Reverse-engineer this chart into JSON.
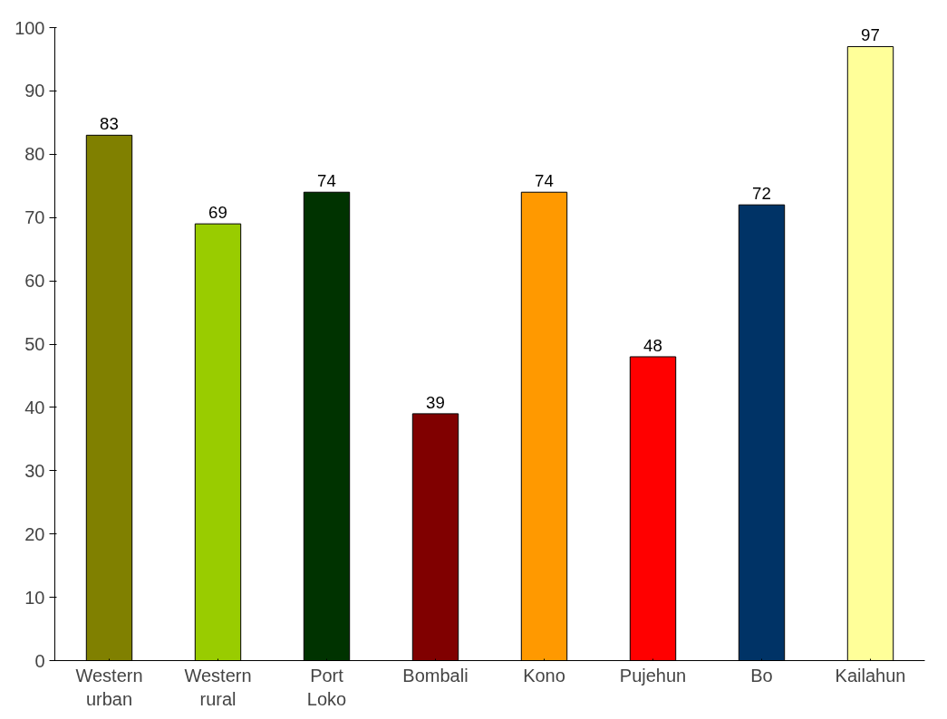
{
  "chart_data": {
    "type": "bar",
    "categories": [
      "Western urban",
      "Western rural",
      "Port Loko",
      "Bombali",
      "Kono",
      "Pujehun",
      "Bo",
      "Kailahun"
    ],
    "values": [
      83,
      69,
      74,
      39,
      74,
      48,
      72,
      97
    ],
    "colors": [
      "#808000",
      "#99cc00",
      "#003300",
      "#800000",
      "#ff9900",
      "#ff0000",
      "#003366",
      "#ffff99"
    ],
    "ylim": [
      0,
      100
    ],
    "yticks": [
      0,
      10,
      20,
      30,
      40,
      50,
      60,
      70,
      80,
      90,
      100
    ],
    "data_labels": true,
    "grid": false
  }
}
